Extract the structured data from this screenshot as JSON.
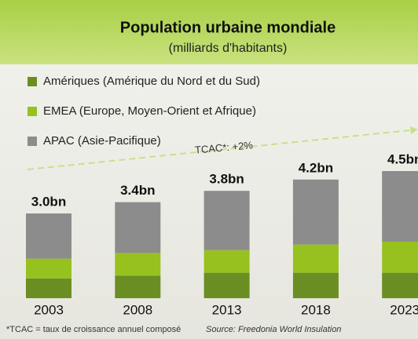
{
  "chart_data": {
    "type": "stacked_bar",
    "title": "Population urbaine mondiale",
    "subtitle": "(milliards d'habitants)",
    "categories": [
      "2003",
      "2008",
      "2013",
      "2018",
      "2023"
    ],
    "series": [
      {
        "name": "Amériques (Amérique du Nord et du Sud)",
        "color": "#6b8e23",
        "values": [
          0.7,
          0.8,
          0.9,
          0.9,
          0.9
        ]
      },
      {
        "name": "EMEA (Europe, Moyen-Orient et Afrique)",
        "color": "#97c11f",
        "values": [
          0.7,
          0.8,
          0.8,
          1.0,
          1.1
        ]
      },
      {
        "name": "APAC (Asie-Pacifique)",
        "color": "#8c8c8c",
        "values": [
          1.6,
          1.8,
          2.1,
          2.3,
          2.5
        ]
      }
    ],
    "totals": {
      "values": [
        3.0,
        3.4,
        3.8,
        4.2,
        4.5
      ],
      "value_labels": [
        "3.0bn",
        "3.4bn",
        "3.8bn",
        "4.2bn",
        "4.5bn"
      ]
    },
    "annotation": "TCAC*: +2%",
    "footnote": "*TCAC = taux de croissance annuel composé",
    "source": "Source: Freedonia World Insulation"
  }
}
